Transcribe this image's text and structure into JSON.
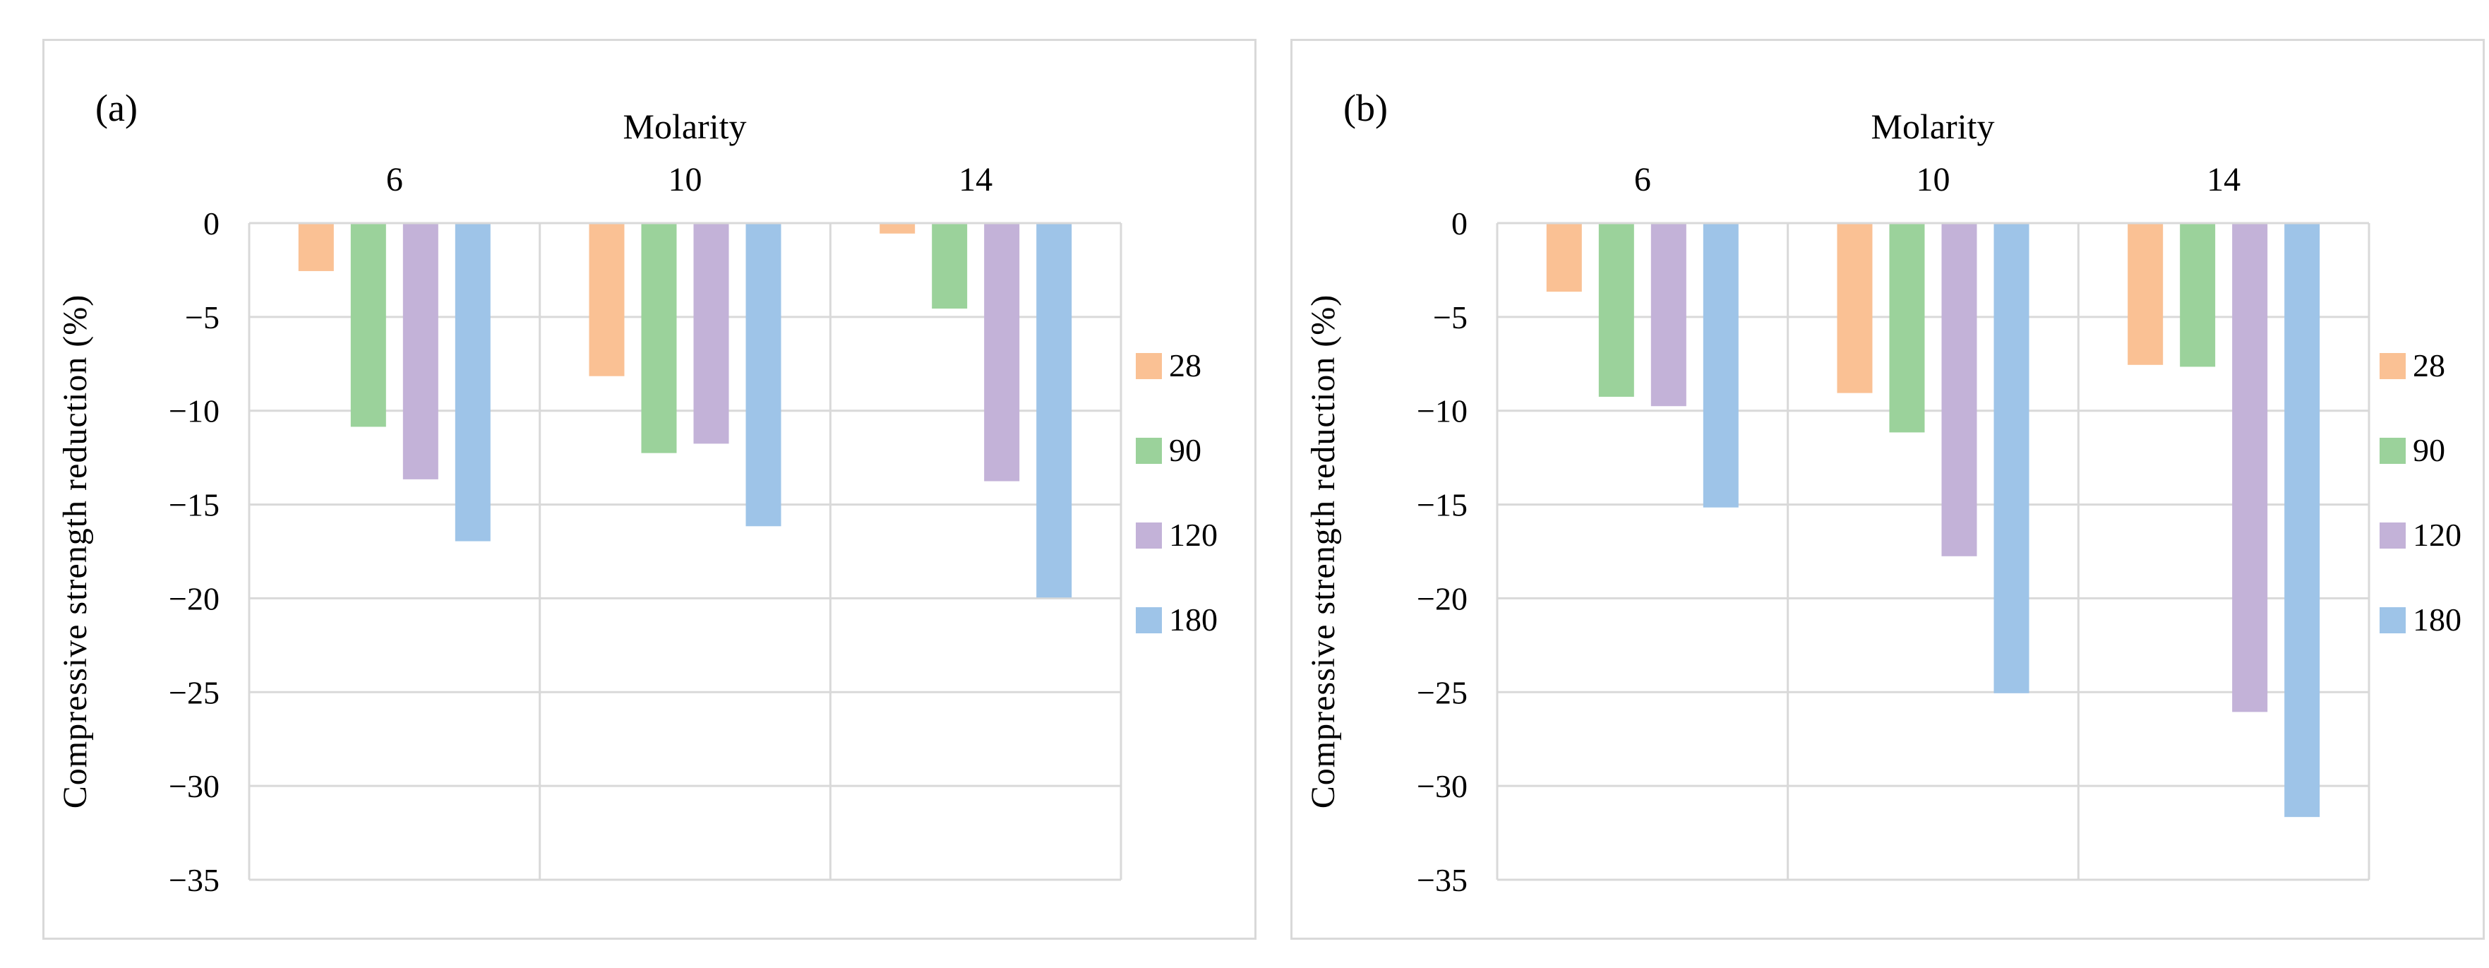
{
  "figure": {
    "background": "#FFFFFF",
    "panel_border_color": "#D9D9D9",
    "grid_color": "#D9D9D9",
    "text_color": "#000000"
  },
  "chart_data": [
    {
      "type": "bar",
      "panel_label": "(a)",
      "title": "Molarity",
      "ylabel": "Compressive strength reduction (%)",
      "categories": [
        "6",
        "10",
        "14"
      ],
      "ytick_labels": [
        "0",
        "−5",
        "−10",
        "−15",
        "−20",
        "−25",
        "−30",
        "−35"
      ],
      "ylim": [
        -35,
        0
      ],
      "ytick_step": 5,
      "grid": "on",
      "legend_position": "right",
      "series": [
        {
          "name": "28",
          "color": "#FAC194",
          "values": [
            -2.5,
            -8.1,
            -0.5
          ]
        },
        {
          "name": "90",
          "color": "#9BD29B",
          "values": [
            -10.8,
            -12.2,
            -4.5
          ]
        },
        {
          "name": "120",
          "color": "#C3B2D8",
          "values": [
            -13.6,
            -11.7,
            -13.7
          ]
        },
        {
          "name": "180",
          "color": "#9EC4E8",
          "values": [
            -16.9,
            -16.1,
            -19.9
          ]
        }
      ]
    },
    {
      "type": "bar",
      "panel_label": "(b)",
      "title": "Molarity",
      "ylabel": "Compressive strength reduction (%)",
      "categories": [
        "6",
        "10",
        "14"
      ],
      "ytick_labels": [
        "0",
        "−5",
        "−10",
        "−15",
        "−20",
        "−25",
        "−30",
        "−35"
      ],
      "ylim": [
        -35,
        0
      ],
      "ytick_step": 5,
      "grid": "on",
      "legend_position": "right",
      "series": [
        {
          "name": "28",
          "color": "#FAC194",
          "values": [
            -3.6,
            -9.0,
            -7.5
          ]
        },
        {
          "name": "90",
          "color": "#9BD29B",
          "values": [
            -9.2,
            -11.1,
            -7.6
          ]
        },
        {
          "name": "120",
          "color": "#C3B2D8",
          "values": [
            -9.7,
            -17.7,
            -26.0
          ]
        },
        {
          "name": "180",
          "color": "#9EC4E8",
          "values": [
            -15.1,
            -25.0,
            -31.6
          ]
        }
      ]
    }
  ]
}
